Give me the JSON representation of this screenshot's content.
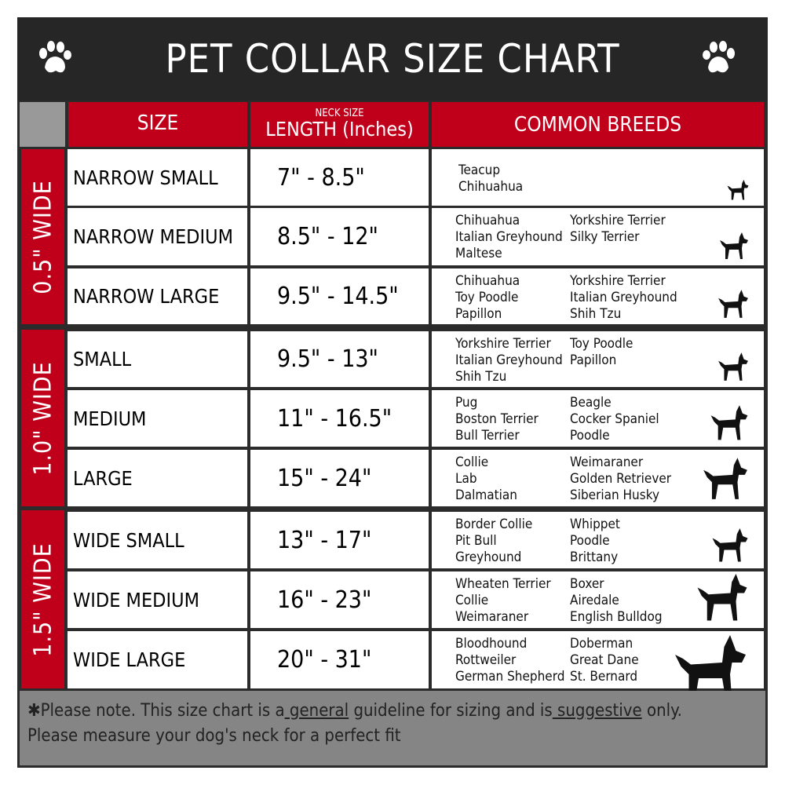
{
  "title": "PET COLLAR SIZE CHART",
  "headers": {
    "size": "SIZE",
    "neck_size": "NECK SIZE",
    "length": "LENGTH (Inches)",
    "breeds": "COMMON BREEDS"
  },
  "groups": [
    "0.5\" WIDE",
    "1.0\" WIDE",
    "1.5\" WIDE"
  ],
  "rows": [
    {
      "size": "NARROW SMALL",
      "length": "7\" - 8.5\"",
      "col1": [
        "Teacup",
        "Chihuahua"
      ],
      "col2": []
    },
    {
      "size": "NARROW MEDIUM",
      "length": "8.5\" - 12\"",
      "col1": [
        "Chihuahua",
        "Italian Greyhound",
        "Maltese"
      ],
      "col2": [
        "Yorkshire Terrier",
        "Silky Terrier"
      ]
    },
    {
      "size": "NARROW LARGE",
      "length": "9.5\" - 14.5\"",
      "col1": [
        "Chihuahua",
        "Toy Poodle",
        "Papillon"
      ],
      "col2": [
        "Yorkshire Terrier",
        "Italian Greyhound",
        "Shih Tzu"
      ]
    },
    {
      "size": "SMALL",
      "length": "9.5\" - 13\"",
      "col1": [
        "Yorkshire Terrier",
        "Italian Greyhound",
        "Shih Tzu"
      ],
      "col2": [
        "Toy Poodle",
        "Papillon"
      ]
    },
    {
      "size": "MEDIUM",
      "length": "11\" - 16.5\"",
      "col1": [
        "Pug",
        "Boston Terrier",
        "Bull Terrier"
      ],
      "col2": [
        "Beagle",
        "Cocker Spaniel",
        "Poodle"
      ]
    },
    {
      "size": "LARGE",
      "length": "15\" - 24\"",
      "col1": [
        "Collie",
        "Lab",
        "Dalmatian"
      ],
      "col2": [
        "Weimaraner",
        "Golden Retriever",
        "Siberian Husky"
      ]
    },
    {
      "size": "WIDE SMALL",
      "length": "13\" - 17\"",
      "col1": [
        "Border Collie",
        "Pit Bull",
        "Greyhound"
      ],
      "col2": [
        "Whippet",
        "Poodle",
        "Brittany"
      ]
    },
    {
      "size": "WIDE MEDIUM",
      "length": "16\" - 23\"",
      "col1": [
        "Wheaten Terrier",
        "Collie",
        "Weimaraner"
      ],
      "col2": [
        "Boxer",
        "Airedale",
        "English Bulldog"
      ]
    },
    {
      "size": "WIDE LARGE",
      "length": "20\" - 31\"",
      "col1": [
        "Bloodhound",
        "Rottweiler",
        "German Shepherd"
      ],
      "col2": [
        "Doberman",
        "Great Dane",
        "St. Bernard"
      ]
    }
  ],
  "footer": {
    "p1": "✱Please note. This size chart is a",
    "u1": " general",
    "p2": " guideline for sizing and is",
    "u2": " suggestive",
    "p3": " only.",
    "line2": "Please measure your dog's neck for a perfect fit"
  },
  "colors": {
    "header_red": "#c0001b",
    "title_bg": "#262626",
    "footer_bg": "#858585"
  },
  "icons": [
    "paw-icon",
    "dog-silhouette-icon"
  ]
}
